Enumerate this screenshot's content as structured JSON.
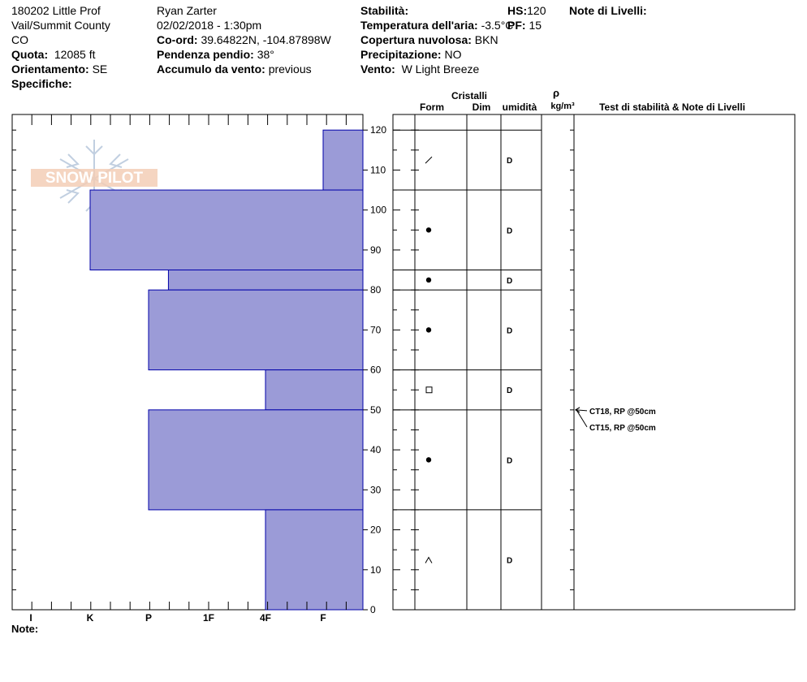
{
  "header": {
    "col1": [
      "180202 Little Prof",
      "Vail/Summit County",
      "CO"
    ],
    "quota_label": "Quota:",
    "quota_value": "12085 ft",
    "orient_label": "Orientamento:",
    "orient_value": "SE",
    "specifiche_label": "Specifiche:",
    "observer": "Ryan Zarter",
    "datetime": "02/02/2018 - 1:30pm",
    "coord_label": "Co-ord:",
    "coord_value": "39.64822N, -104.87898W",
    "pendenza_label": "Pendenza pendio:",
    "pendenza_value": "38°",
    "accumulo_label": "Accumulo da vento:",
    "accumulo_value": "previous",
    "stabilita_label": "Stabilità:",
    "temp_label": "Temperatura dell'aria:",
    "temp_value": "-3.5°C",
    "copertura_label": "Copertura nuvolosa:",
    "copertura_value": "BKN",
    "precip_label": "Precipitazione:",
    "precip_value": "NO",
    "vento_label": "Vento:",
    "vento_value": "W Light Breeze",
    "hs_label": "HS:",
    "hs_value": "120",
    "pf_label": "PF:",
    "pf_value": "15",
    "note_livelli": "Note di Livelli:"
  },
  "footer": {
    "note_label": "Note:"
  },
  "logo_text": "SNOW PILOT",
  "columns": {
    "cristalli": "Cristalli",
    "form": "Form",
    "dim": "Dim",
    "umidita": "umidità",
    "rho": "ρ",
    "density_unit": "kg/m³",
    "tests": "Test di stabilità & Note di Livelli"
  },
  "chart_data": {
    "type": "bar",
    "hardness_scale": [
      "I",
      "K",
      "P",
      "1F",
      "4F",
      "F"
    ],
    "y_ticks": [
      0,
      10,
      20,
      30,
      40,
      50,
      60,
      70,
      80,
      90,
      100,
      110,
      120
    ],
    "ylim": [
      0,
      120
    ],
    "layers": [
      {
        "bottom": 105,
        "top": 120,
        "hardness": 5.0,
        "form": "slash",
        "moisture": "D"
      },
      {
        "bottom": 85,
        "top": 105,
        "hardness": 1.0,
        "form": "dot",
        "moisture": "D"
      },
      {
        "bottom": 80,
        "top": 85,
        "hardness": 2.33,
        "form": "dot",
        "moisture": "D"
      },
      {
        "bottom": 60,
        "top": 80,
        "hardness": 2.0,
        "form": "dot",
        "moisture": "D"
      },
      {
        "bottom": 50,
        "top": 60,
        "hardness": 4.0,
        "form": "square",
        "moisture": "D"
      },
      {
        "bottom": 25,
        "top": 50,
        "hardness": 2.0,
        "form": "dot",
        "moisture": "D"
      },
      {
        "bottom": 0,
        "top": 25,
        "hardness": 4.0,
        "form": "caret",
        "moisture": "D"
      }
    ],
    "tests": [
      {
        "depth": 50,
        "label": "CT18, RP @50cm"
      },
      {
        "depth": 50,
        "label": "CT15, RP @50cm"
      }
    ],
    "colors": {
      "bar_fill": "#9b9bd7",
      "bar_stroke": "#0000aa"
    }
  }
}
